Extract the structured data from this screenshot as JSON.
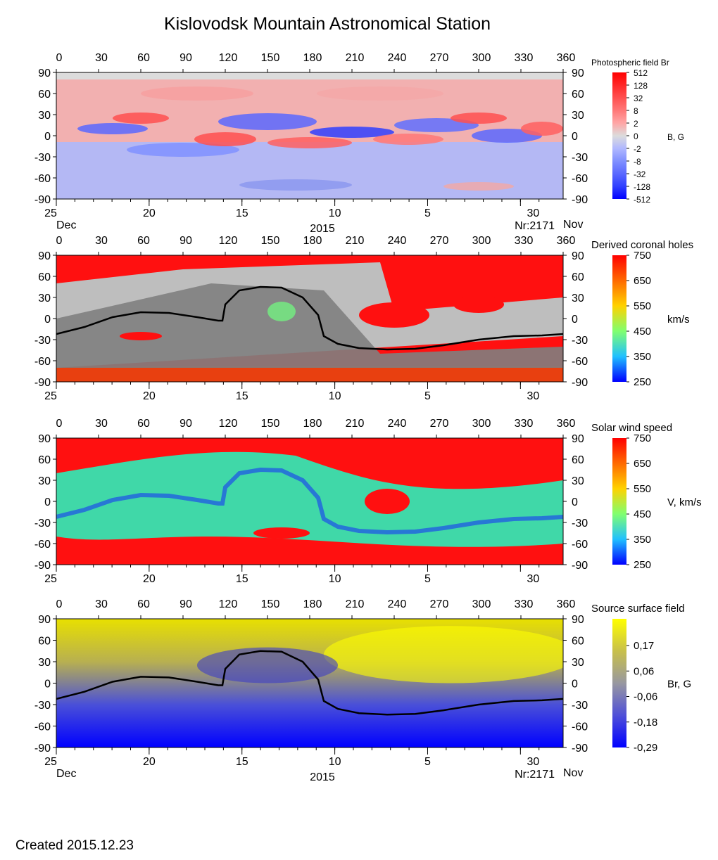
{
  "title": "Kislovodsk Mountain Astronomical Station",
  "created": "Created  2015.12.23",
  "chart_data": [
    {
      "type": "heatmap",
      "colorbar_title": "Photospheric field Br",
      "colorbar_unit": "B, G",
      "colorbar_ticks": [
        "512",
        "128",
        "32",
        "8",
        "2",
        "0",
        "-2",
        "-8",
        "-32",
        "-128",
        "-512"
      ],
      "colorbar_colors": [
        "#ff0000",
        "#ff2828",
        "#ff5050",
        "#ff7878",
        "#ffa6a6",
        "#dcdcdc",
        "#b0b8ff",
        "#8090ff",
        "#5a68ff",
        "#3040ff",
        "#0000ff"
      ],
      "x_range": [
        0,
        360
      ],
      "y_range": [
        -90,
        90
      ],
      "x_ticks": [
        "0",
        "30",
        "60",
        "90",
        "120",
        "150",
        "180",
        "210",
        "240",
        "270",
        "300",
        "330",
        "360"
      ],
      "y_ticks": [
        "90",
        "60",
        "30",
        "0",
        "-30",
        "-60",
        "-90"
      ],
      "date_ticks": [
        "25",
        "20",
        "15",
        "10",
        "5",
        "30"
      ],
      "date_labels": {
        "left": "Dec",
        "year": "2015",
        "rotation": "Nr:2171",
        "right": "Nov"
      }
    },
    {
      "type": "heatmap",
      "colorbar_title": "Derived coronal holes",
      "colorbar_unit": "km/s",
      "colorbar_ticks": [
        "750",
        "650",
        "550",
        "450",
        "350",
        "250"
      ],
      "colorbar_colors": [
        "#ff0000",
        "#ff6a00",
        "#ffd200",
        "#80ff70",
        "#20c0ff",
        "#0000ff"
      ],
      "x_range": [
        0,
        360
      ],
      "y_range": [
        -90,
        90
      ],
      "x_ticks": [
        "0",
        "30",
        "60",
        "90",
        "120",
        "150",
        "180",
        "210",
        "240",
        "270",
        "300",
        "330",
        "360"
      ],
      "y_ticks": [
        "90",
        "60",
        "30",
        "0",
        "-30",
        "-60",
        "-90"
      ],
      "date_ticks": [
        "25",
        "20",
        "15",
        "10",
        "5",
        "30"
      ],
      "neutral_line": true
    },
    {
      "type": "heatmap",
      "colorbar_title": "Solar wind speed",
      "colorbar_unit": "V, km/s",
      "colorbar_ticks": [
        "750",
        "650",
        "550",
        "450",
        "350",
        "250"
      ],
      "colorbar_colors": [
        "#ff0000",
        "#ff6a00",
        "#ffd200",
        "#80ff70",
        "#20c0ff",
        "#0000ff"
      ],
      "x_range": [
        0,
        360
      ],
      "y_range": [
        -90,
        90
      ],
      "x_ticks": [
        "0",
        "30",
        "60",
        "90",
        "120",
        "150",
        "180",
        "210",
        "240",
        "270",
        "300",
        "330",
        "360"
      ],
      "y_ticks": [
        "90",
        "60",
        "30",
        "0",
        "-30",
        "-60",
        "-90"
      ],
      "date_ticks": [
        "25",
        "20",
        "15",
        "10",
        "5",
        "30"
      ]
    },
    {
      "type": "heatmap",
      "colorbar_title": "Source surface field",
      "colorbar_unit": "Br, G",
      "colorbar_ticks": [
        "0,17",
        "0,06",
        "-0,06",
        "-0,18",
        "-0,29"
      ],
      "colorbar_colors": [
        "#ffff00",
        "#c8c04a",
        "#9898a0",
        "#5050d8",
        "#0000ff"
      ],
      "x_range": [
        0,
        360
      ],
      "y_range": [
        -90,
        90
      ],
      "x_ticks": [
        "0",
        "30",
        "60",
        "90",
        "120",
        "150",
        "180",
        "210",
        "240",
        "270",
        "300",
        "330",
        "360"
      ],
      "y_ticks": [
        "90",
        "60",
        "30",
        "0",
        "-30",
        "-60",
        "-90"
      ],
      "date_ticks": [
        "25",
        "20",
        "15",
        "10",
        "5",
        "30"
      ],
      "date_labels": {
        "left": "Dec",
        "year": "2015",
        "rotation": "Nr:2171",
        "right": "Nov"
      },
      "neutral_line": true
    }
  ],
  "neutral_line": {
    "lon": [
      0,
      20,
      40,
      60,
      80,
      100,
      115,
      118,
      120,
      130,
      145,
      160,
      175,
      186,
      190,
      200,
      215,
      235,
      255,
      275,
      300,
      325,
      345,
      360
    ],
    "lat": [
      -22,
      -12,
      2,
      9,
      8,
      2,
      -3,
      -3,
      20,
      40,
      45,
      44,
      30,
      5,
      -25,
      -36,
      -42,
      -44,
      -43,
      -38,
      -30,
      -25,
      -24,
      -22
    ]
  }
}
